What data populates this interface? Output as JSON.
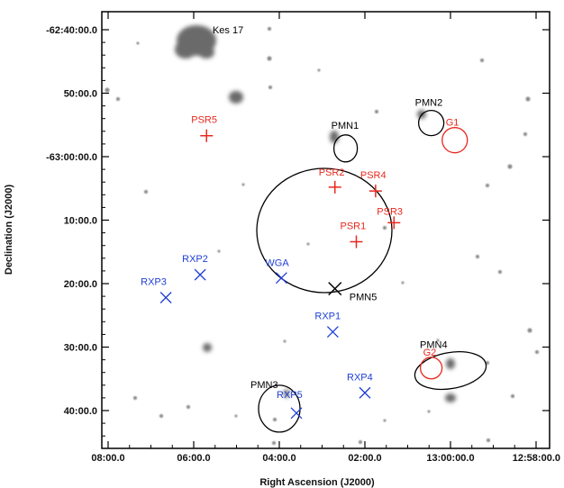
{
  "chart_data": {
    "type": "scatter",
    "title": "",
    "xlabel": "Right Ascension (J2000)",
    "ylabel": "Declination (J2000)",
    "x_ticks": [
      {
        "label": "08:00.0",
        "ra_min": 8.0
      },
      {
        "label": "06:00.0",
        "ra_min": 6.0
      },
      {
        "label": "04:00.0",
        "ra_min": 4.0
      },
      {
        "label": "02:00.0",
        "ra_min": 2.0
      },
      {
        "label": "13:00:00.0",
        "ra_min": 0.0
      },
      {
        "label": "12:58:00.0",
        "ra_min": -2.0
      }
    ],
    "y_ticks": [
      {
        "label": "-62:40:00.0",
        "dec_arcmin": -40
      },
      {
        "label": "50:00.0",
        "dec_arcmin": -50
      },
      {
        "label": "-63:00:00.0",
        "dec_arcmin": -60
      },
      {
        "label": "10:00.0",
        "dec_arcmin": -70
      },
      {
        "label": "20:00.0",
        "dec_arcmin": -80
      },
      {
        "label": "30:00.0",
        "dec_arcmin": -90
      },
      {
        "label": "40:00.0",
        "dec_arcmin": -100
      }
    ],
    "xlim_ra_min": [
      8.3,
      -2.15
    ],
    "ylim_dec_arcmin": [
      -35.8,
      -105.8
    ],
    "ra_unit": "minutes after 12h",
    "dec_unit": "arcmin of declination",
    "colors": {
      "pmn": "#000000",
      "psr": "#e8281e",
      "rxp": "#1f3fd6",
      "g": "#e8281e",
      "wga": "#1f3fd6"
    },
    "extended": [
      {
        "label": "Kes 17",
        "ra_min": 4.38,
        "dec_arcmin": -42.0,
        "color": "#000000"
      }
    ],
    "pmn_sources": [
      {
        "label": "PMN1",
        "ra_min": 2.45,
        "dec_arcmin": -58.7
      },
      {
        "label": "PMN2",
        "ra_min": 0.45,
        "dec_arcmin": -54.7
      },
      {
        "label": "PMN3",
        "ra_min": 4.0,
        "dec_arcmin": -99.7
      },
      {
        "label": "PMN4",
        "ra_min": 0.0,
        "dec_arcmin": -93.7
      },
      {
        "label": "PMN5",
        "ra_min": 2.7,
        "dec_arcmin": -80.8
      }
    ],
    "pulsars": [
      {
        "label": "PSR1",
        "ra_min": 2.2,
        "dec_arcmin": -73.4
      },
      {
        "label": "PSR2",
        "ra_min": 2.7,
        "dec_arcmin": -64.8
      },
      {
        "label": "PSR3",
        "ra_min": 1.32,
        "dec_arcmin": -70.4
      },
      {
        "label": "PSR4",
        "ra_min": 1.75,
        "dec_arcmin": -65.4
      },
      {
        "label": "PSR5",
        "ra_min": 5.7,
        "dec_arcmin": -56.7
      }
    ],
    "xray_sources": [
      {
        "label": "RXP1",
        "ra_min": 2.75,
        "dec_arcmin": -87.6
      },
      {
        "label": "RXP2",
        "ra_min": 5.85,
        "dec_arcmin": -78.6
      },
      {
        "label": "RXP3",
        "ra_min": 6.65,
        "dec_arcmin": -82.2
      },
      {
        "label": "RXP4",
        "ra_min": 2.0,
        "dec_arcmin": -97.2
      },
      {
        "label": "RXP5",
        "ra_min": 3.6,
        "dec_arcmin": -100.4
      }
    ],
    "wga": {
      "label": "WGA",
      "ra_min": 3.95,
      "dec_arcmin": -79.1
    },
    "g_sources": [
      {
        "label": "G1",
        "ra_min": -0.1,
        "dec_arcmin": -57.4
      },
      {
        "label": "G2",
        "ra_min": 0.45,
        "dec_arcmin": -93.3
      }
    ]
  }
}
